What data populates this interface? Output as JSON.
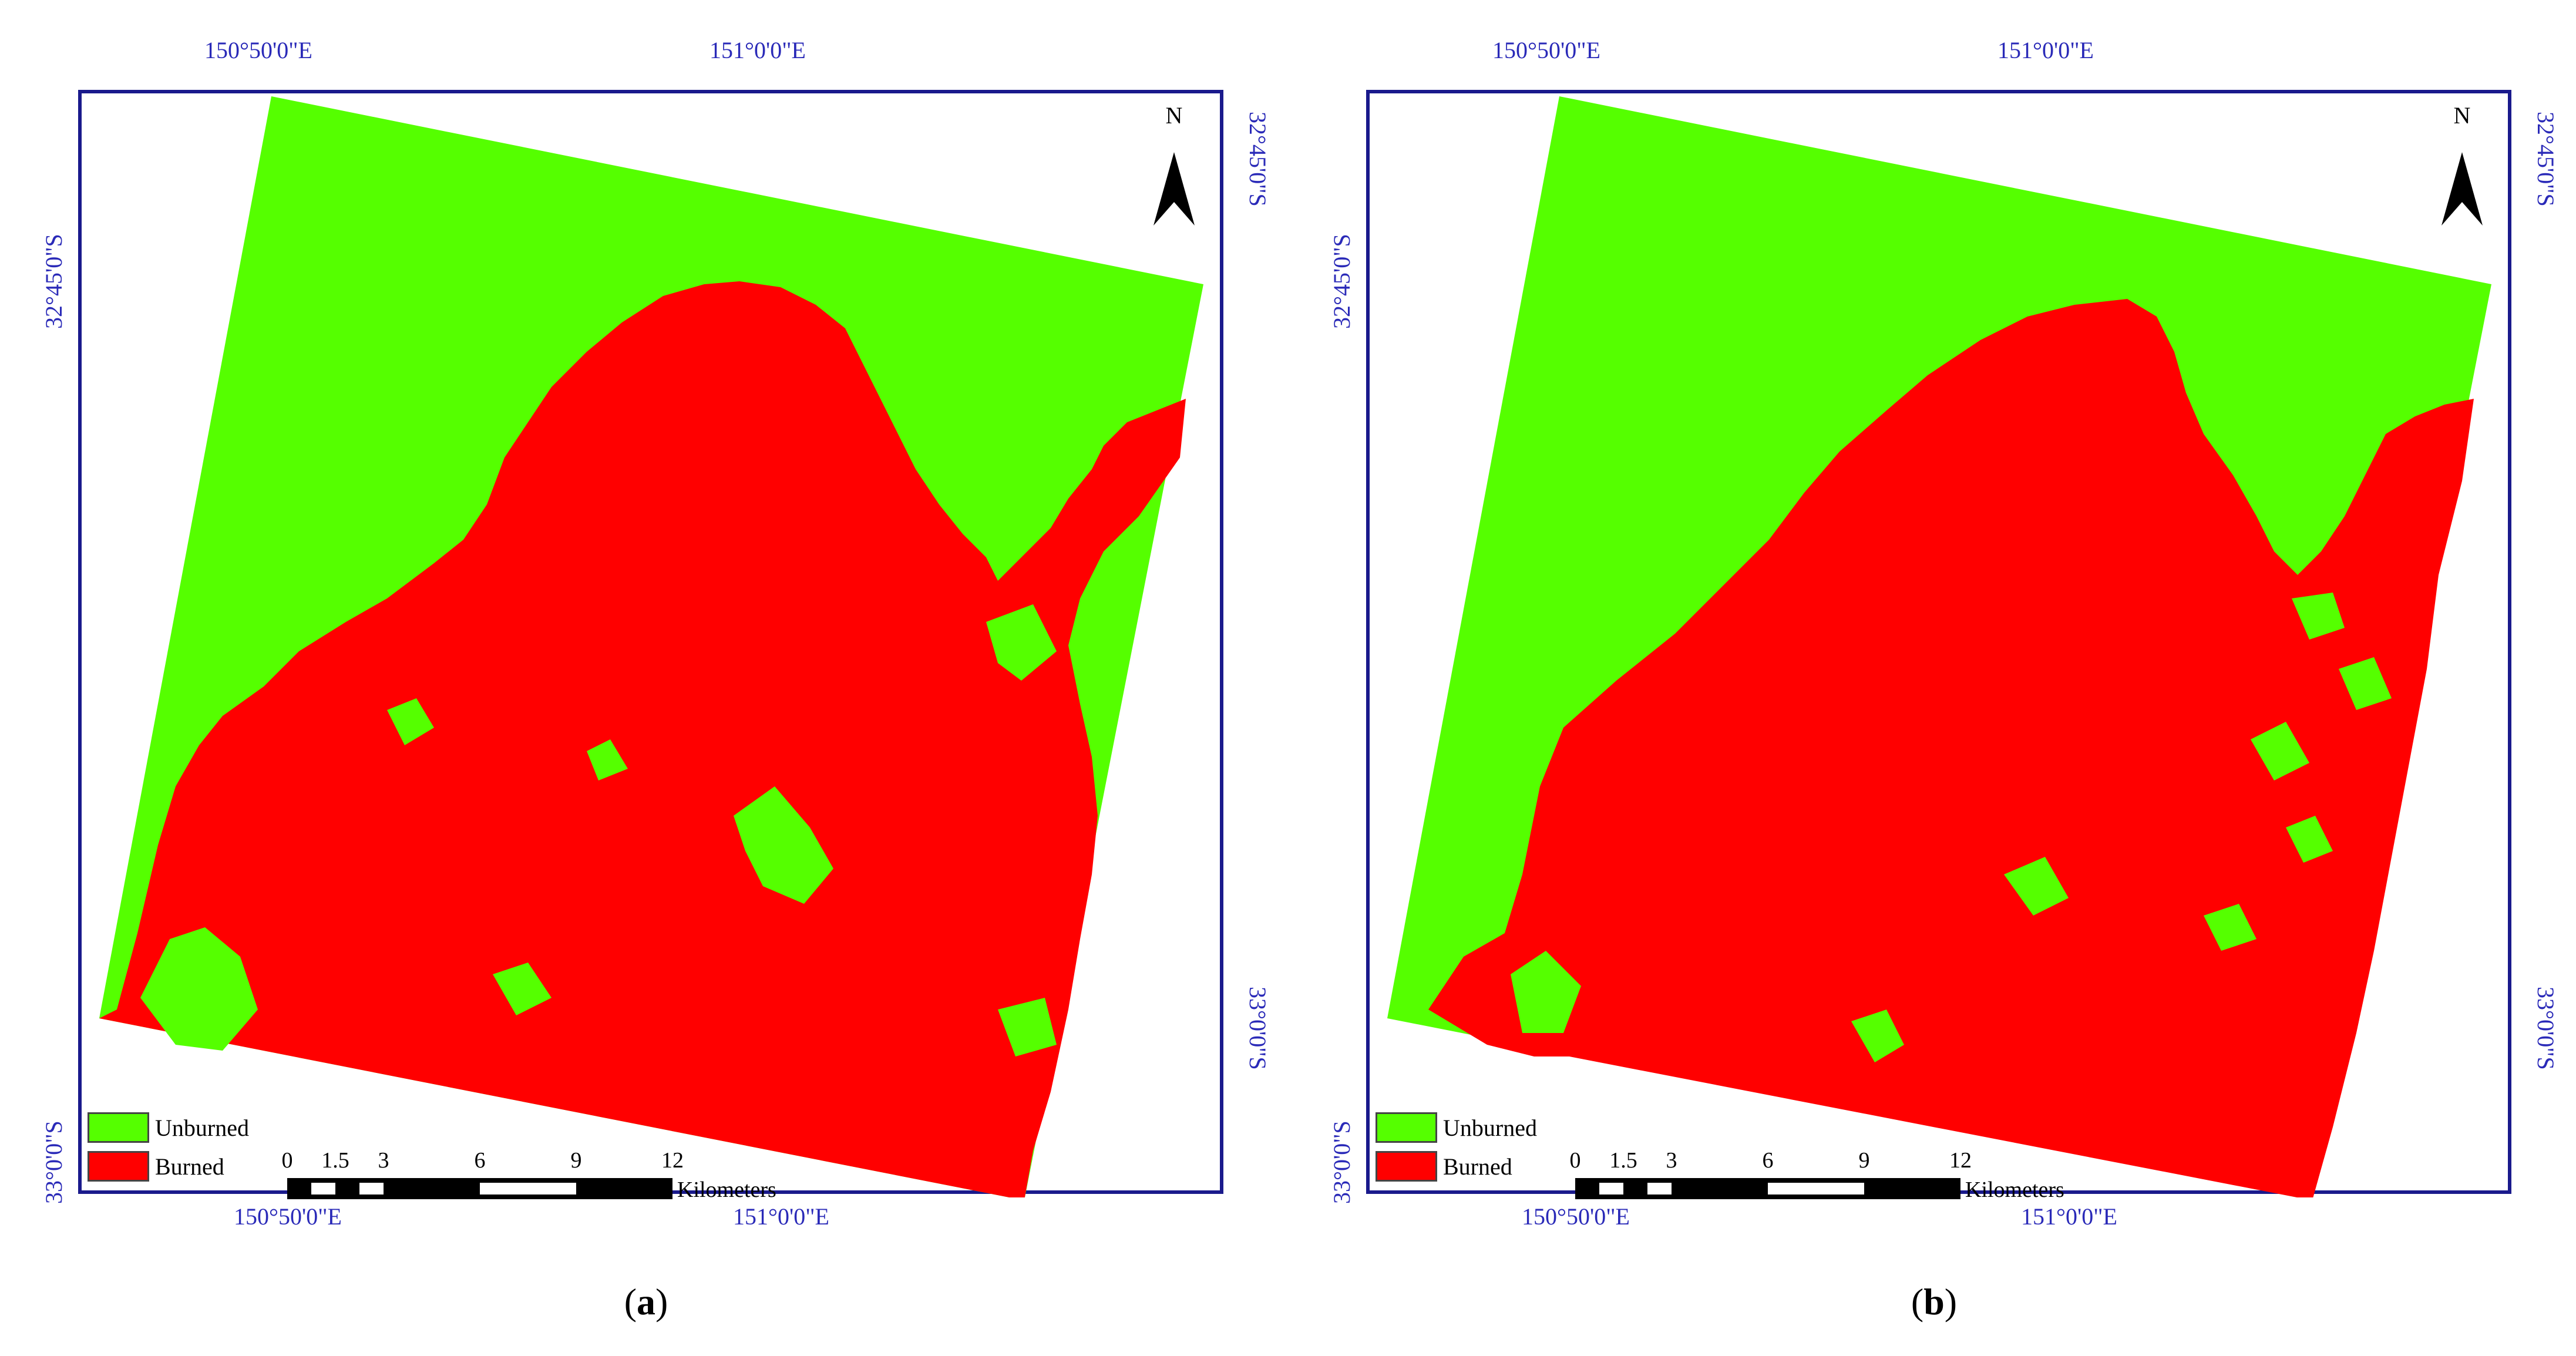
{
  "panels": [
    {
      "id": "a",
      "caption_open": "(",
      "caption_letter": "a",
      "caption_close": ")",
      "top_labels": [
        "150°50'0\"E",
        "151°0'0\"E"
      ],
      "bottom_labels": [
        "150°50'0\"E",
        "151°0'0\"E"
      ],
      "left_labels": [
        "32°45'0\"S",
        "33°0'0\"S"
      ],
      "right_labels": [
        "32°45'0\"S",
        "33°0'0\"S"
      ],
      "north": "N",
      "legend": [
        {
          "label": "Unburned",
          "color": "#55ff00"
        },
        {
          "label": "Burned",
          "color": "#ff0000"
        }
      ],
      "scale_ticks": [
        "0",
        "1.5",
        "3",
        "6",
        "9",
        "12"
      ],
      "scale_unit": "Kilometers"
    },
    {
      "id": "b",
      "caption_open": "(",
      "caption_letter": "b",
      "caption_close": ")",
      "top_labels": [
        "150°50'0\"E",
        "151°0'0\"E"
      ],
      "bottom_labels": [
        "150°50'0\"E",
        "151°0'0\"E"
      ],
      "left_labels": [
        "32°45'0\"S",
        "33°0'0\"S"
      ],
      "right_labels": [
        "32°45'0\"S",
        "33°0'0\"S"
      ],
      "north": "N",
      "legend": [
        {
          "label": "Unburned",
          "color": "#55ff00"
        },
        {
          "label": "Burned",
          "color": "#ff0000"
        }
      ],
      "scale_ticks": [
        "0",
        "1.5",
        "3",
        "6",
        "9",
        "12"
      ],
      "scale_unit": "Kilometers"
    }
  ],
  "colors": {
    "unburned": "#55ff00",
    "burned": "#ff0000",
    "frame": "#1a1a8c",
    "coordinate_text": "#2a2ab8"
  }
}
